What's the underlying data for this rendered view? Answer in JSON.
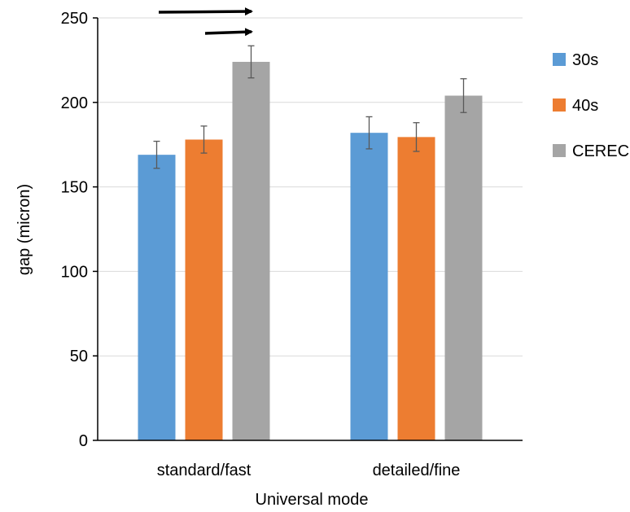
{
  "chart_data": {
    "type": "bar",
    "categories": [
      "standard/fast",
      "detailed/fine"
    ],
    "series": [
      {
        "name": "30s",
        "values": [
          169,
          182
        ],
        "errors": [
          8,
          9.5
        ],
        "color": "#5b9bd5"
      },
      {
        "name": "40s",
        "values": [
          178,
          179.5
        ],
        "errors": [
          8,
          8.5
        ],
        "color": "#ed7d31"
      },
      {
        "name": "CEREC",
        "values": [
          224,
          204
        ],
        "errors": [
          9.5,
          10
        ],
        "color": "#a5a5a5"
      }
    ],
    "xlabel": "Universal mode",
    "ylabel": "gap (micron)",
    "ylim": [
      0,
      250
    ],
    "yticks": [
      0,
      50,
      100,
      150,
      200,
      250
    ],
    "grid": true,
    "legend_position": "right",
    "annotations": [
      {
        "type": "arrow",
        "label": ""
      },
      {
        "type": "arrow",
        "label": ""
      }
    ]
  }
}
